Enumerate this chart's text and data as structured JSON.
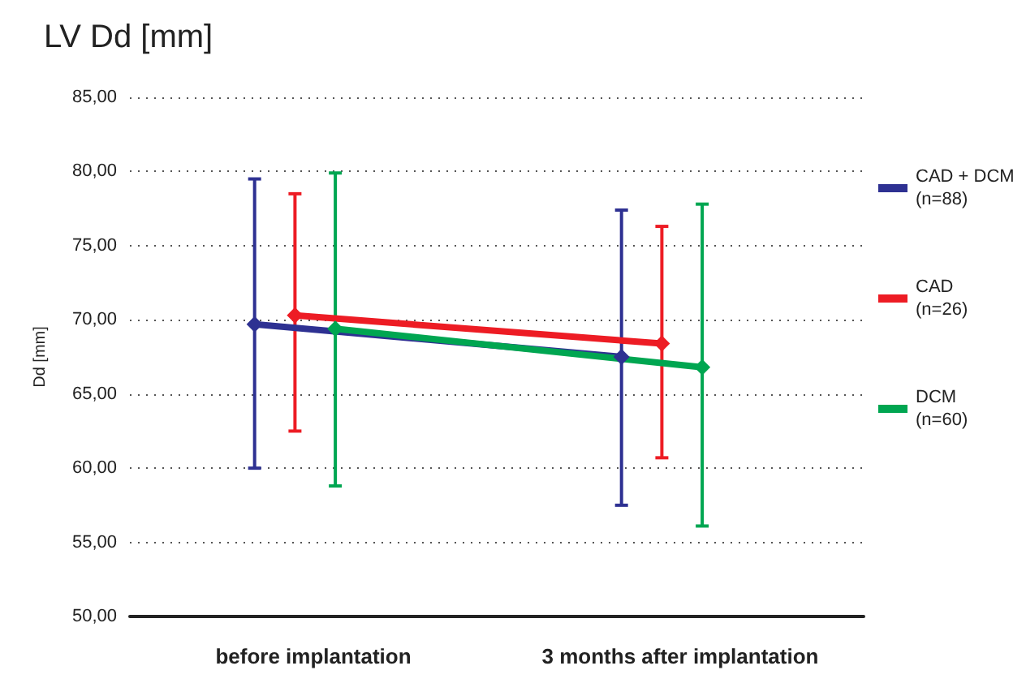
{
  "chart_data": {
    "type": "line",
    "title": "LV Dd [mm]",
    "ylabel": "Dd [mm]",
    "categories": [
      "before implantation",
      "3 months after implantation"
    ],
    "series": [
      {
        "name": "CAD + DCM\n(n=88)",
        "color": "#2e3192",
        "values": [
          69.7,
          67.5
        ],
        "errors": [
          [
            60.0,
            79.5
          ],
          [
            57.5,
            77.4
          ]
        ]
      },
      {
        "name": "CAD\n(n=26)",
        "color": "#ed1c24",
        "values": [
          70.3,
          68.4
        ],
        "errors": [
          [
            62.5,
            78.5
          ],
          [
            60.7,
            76.3
          ]
        ]
      },
      {
        "name": "DCM\n(n=60)",
        "color": "#00a651",
        "values": [
          69.4,
          66.8
        ],
        "errors": [
          [
            58.8,
            79.9
          ],
          [
            56.1,
            77.8
          ]
        ]
      }
    ],
    "ylim": [
      50,
      85
    ],
    "yticks": [
      {
        "value": 50,
        "label": "50,00"
      },
      {
        "value": 55,
        "label": "55,00"
      },
      {
        "value": 60,
        "label": "60,00"
      },
      {
        "value": 65,
        "label": "65,00"
      },
      {
        "value": 70,
        "label": "70,00"
      },
      {
        "value": 75,
        "label": "75,00"
      },
      {
        "value": 80,
        "label": "80,00"
      },
      {
        "value": 85,
        "label": "85,00"
      }
    ],
    "grid": "y",
    "legend": "right",
    "marker": "diamond",
    "line_style": "solid"
  }
}
